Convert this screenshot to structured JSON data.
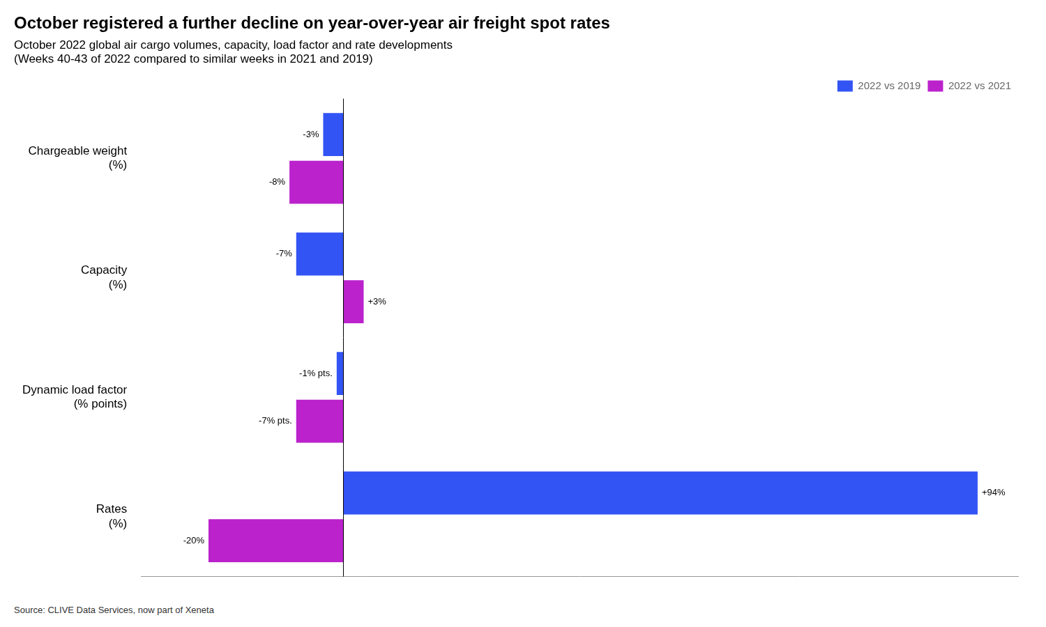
{
  "chart_data": {
    "type": "bar",
    "orientation": "horizontal",
    "title": "October registered a further decline on year-over-year air freight spot rates",
    "subtitle": [
      "October 2022 global air cargo volumes, capacity, load factor and rate developments",
      "(Weeks 40-43 of 2022 compared to similar weeks in 2021 and 2019)"
    ],
    "source": "Source: CLIVE Data Services, now part of Xeneta",
    "categories": [
      [
        "Chargeable weight",
        "(%)"
      ],
      [
        "Capacity",
        "(%)"
      ],
      [
        "Dynamic load factor",
        "(% points)"
      ],
      [
        "Rates",
        "(%)"
      ]
    ],
    "series": [
      {
        "name": "2022 vs 2019",
        "color": "#3354F4",
        "values": [
          -3,
          -7,
          -1,
          94
        ],
        "value_labels": [
          "-3%",
          "-7%",
          "-1% pts.",
          "+94%"
        ]
      },
      {
        "name": "2022 vs 2021",
        "color": "#BB22CC",
        "values": [
          -8,
          3,
          -7,
          -20
        ],
        "value_labels": [
          "-8%",
          "+3%",
          "-7% pts.",
          "-20%"
        ]
      }
    ],
    "xlim": [
      -30,
      100
    ],
    "grid": false,
    "legend": "upper right",
    "data_labels": true,
    "tick_labels": "y"
  }
}
